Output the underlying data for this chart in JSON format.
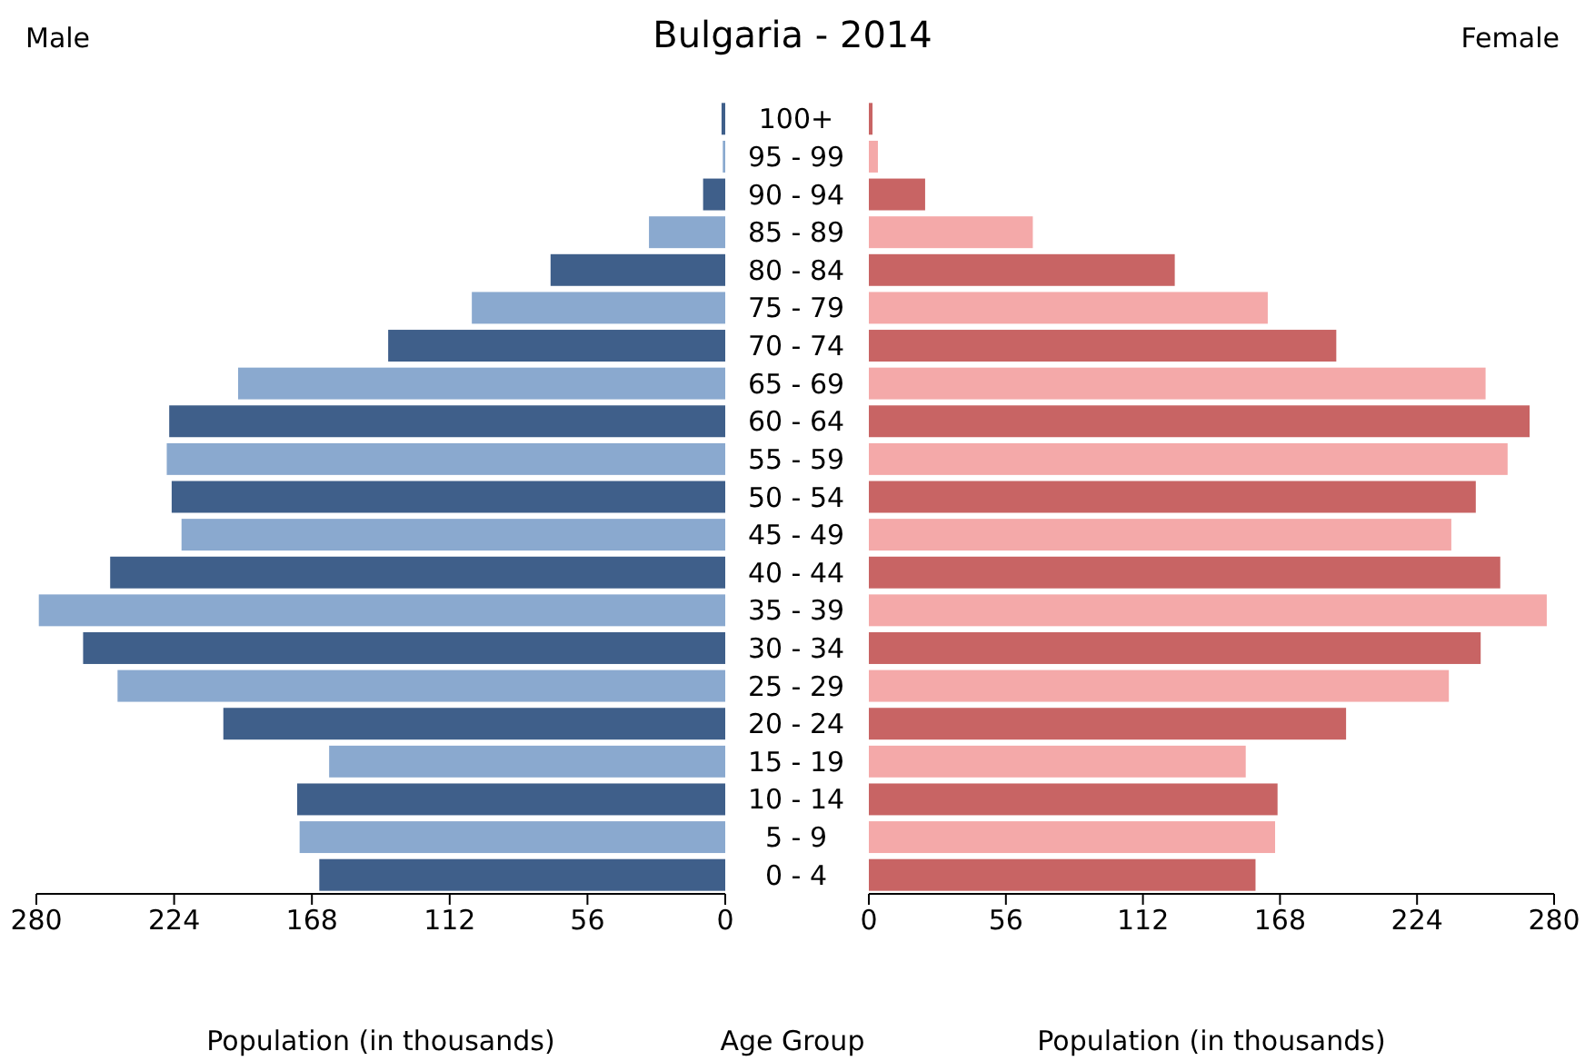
{
  "chart_data": [
    {
      "type": "bar",
      "orientation": "horizontal",
      "title": "Bulgaria - 2014",
      "xlabel": "Population (in thousands)",
      "ylabel": "Age Group",
      "categories": [
        "100+",
        "95 - 99",
        "90 - 94",
        "85 - 89",
        "80 - 84",
        "75 - 79",
        "70 - 74",
        "65 - 69",
        "60 - 64",
        "55 - 59",
        "50 - 54",
        "45 - 49",
        "40 - 44",
        "35 - 39",
        "30 - 34",
        "25 - 29",
        "20 - 24",
        "15 - 19",
        "10 - 14",
        "5 - 9",
        "0 - 4"
      ],
      "series": [
        {
          "name": "Male",
          "values": [
            1.5,
            1,
            9,
            31,
            71,
            103,
            137,
            198,
            226,
            227,
            225,
            221,
            250,
            279,
            261,
            247,
            204,
            161,
            174,
            173,
            165
          ],
          "colors": [
            "#3f5f8a",
            "#8aa9cf",
            "#3f5f8a",
            "#8aa9cf",
            "#3f5f8a",
            "#8aa9cf",
            "#3f5f8a",
            "#8aa9cf",
            "#3f5f8a",
            "#8aa9cf",
            "#3f5f8a",
            "#8aa9cf",
            "#3f5f8a",
            "#8aa9cf",
            "#3f5f8a",
            "#8aa9cf",
            "#3f5f8a",
            "#8aa9cf",
            "#3f5f8a",
            "#8aa9cf",
            "#3f5f8a"
          ]
        }
      ],
      "xlim": [
        280,
        0
      ],
      "xticks": [
        280,
        224,
        168,
        112,
        56,
        0
      ],
      "grid": false
    },
    {
      "type": "bar",
      "orientation": "horizontal",
      "xlabel": "Population (in thousands)",
      "categories": [
        "100+",
        "95 - 99",
        "90 - 94",
        "85 - 89",
        "80 - 84",
        "75 - 79",
        "70 - 74",
        "65 - 69",
        "60 - 64",
        "55 - 59",
        "50 - 54",
        "45 - 49",
        "40 - 44",
        "35 - 39",
        "30 - 34",
        "25 - 29",
        "20 - 24",
        "15 - 19",
        "10 - 14",
        "5 - 9",
        "0 - 4"
      ],
      "series": [
        {
          "name": "Female",
          "values": [
            1.5,
            3.7,
            23,
            67,
            125,
            163,
            191,
            252,
            270,
            261,
            248,
            238,
            258,
            277,
            250,
            237,
            195,
            154,
            167,
            166,
            158
          ],
          "colors": [
            "#c86464",
            "#f4a9a9",
            "#c86464",
            "#f4a9a9",
            "#c86464",
            "#f4a9a9",
            "#c86464",
            "#f4a9a9",
            "#c86464",
            "#f4a9a9",
            "#c86464",
            "#f4a9a9",
            "#c86464",
            "#f4a9a9",
            "#c86464",
            "#f4a9a9",
            "#c86464",
            "#f4a9a9",
            "#c86464",
            "#f4a9a9",
            "#c86464"
          ]
        }
      ],
      "xlim": [
        0,
        280
      ],
      "xticks": [
        0,
        56,
        112,
        168,
        224,
        280
      ],
      "tick_labels": "x",
      "grid": false
    }
  ]
}
